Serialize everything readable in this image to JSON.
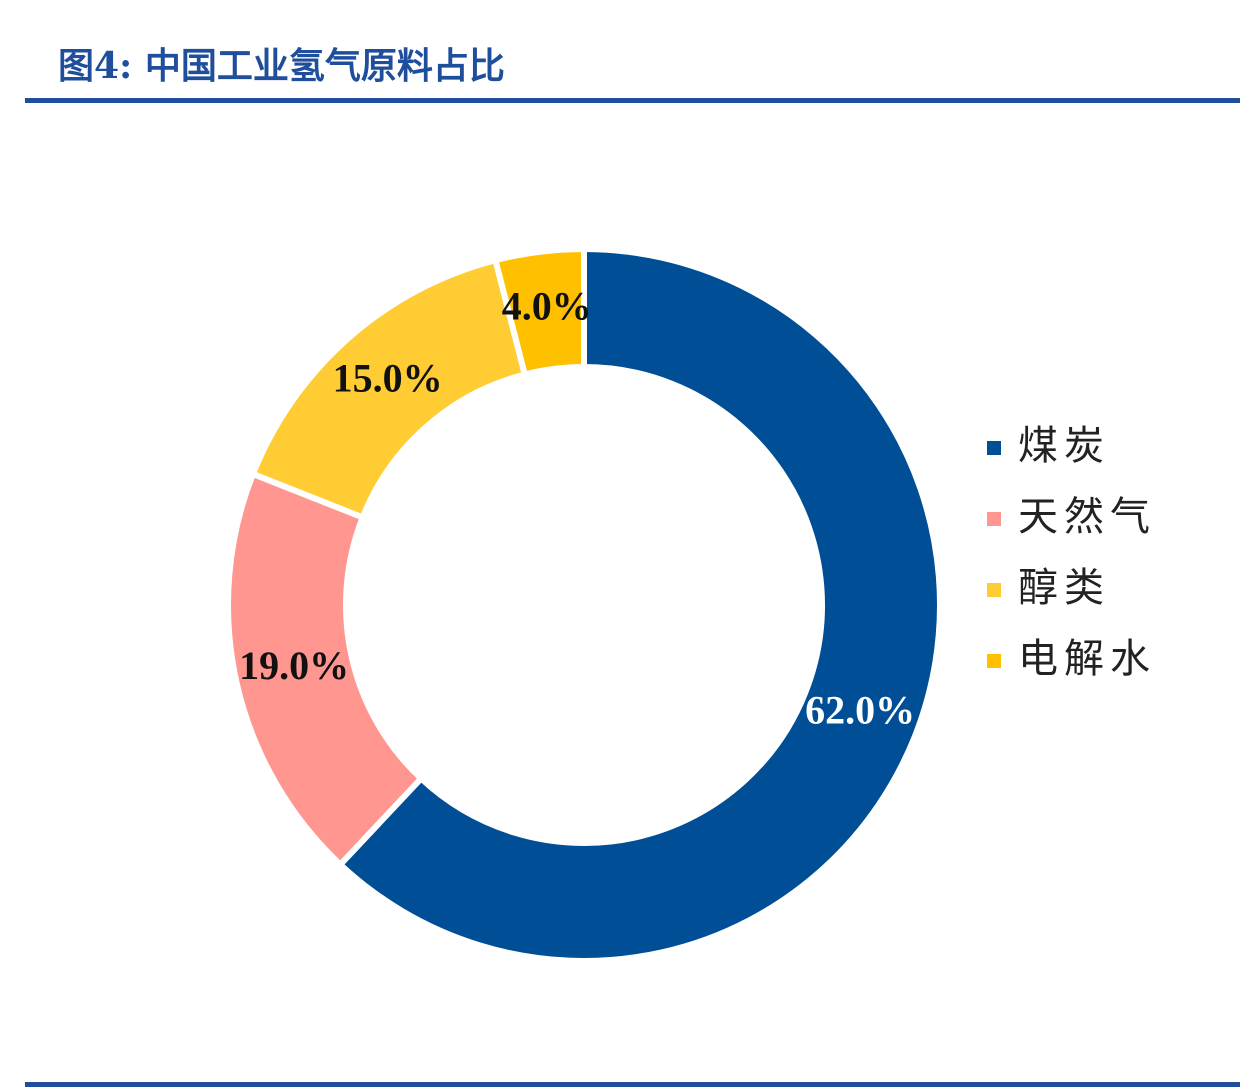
{
  "chart_data": {
    "type": "donut",
    "title": "图4: 中国工业氢气原料占比",
    "categories": [
      "煤炭",
      "天然气",
      "醇类",
      "电解水"
    ],
    "values": [
      62,
      19,
      15,
      4
    ],
    "value_labels": [
      "62.0%",
      "19.0%",
      "15.0%",
      "4.0%"
    ],
    "colors": [
      "#004e96",
      "#ff9690",
      "#ffcc33",
      "#ffc000"
    ],
    "label_colors": [
      "#ffffff",
      "#111111",
      "#111111",
      "#111111"
    ],
    "legend": "right"
  }
}
